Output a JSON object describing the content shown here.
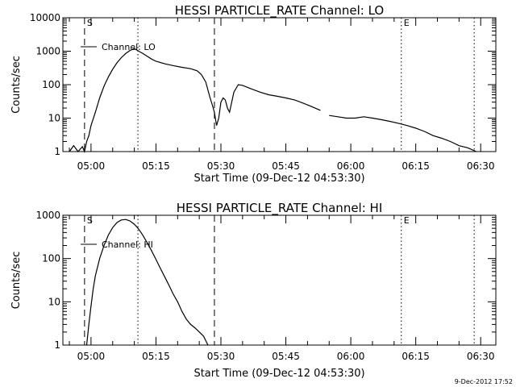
{
  "chart_data": [
    {
      "type": "line",
      "title": "HESSI PARTICLE_RATE Channel: LO",
      "xlabel": "Start Time (09-Dec-12 04:53:30)",
      "ylabel": "Counts/sec",
      "yscale": "log",
      "ylim": [
        1,
        10000
      ],
      "xlim_minutes": [
        0,
        100
      ],
      "x_ticks": [
        "05:00",
        "05:15",
        "05:30",
        "05:45",
        "06:00",
        "06:15",
        "06:30"
      ],
      "y_ticks": [
        "1",
        "10",
        "100",
        "1000",
        "10000"
      ],
      "legend": {
        "label": "Channel: LO",
        "position": "top-left"
      },
      "markers": [
        {
          "label": "S",
          "time": "04:58:30",
          "style": "dashed"
        },
        {
          "label": "",
          "time": "05:28:30",
          "style": "dashed"
        },
        {
          "label": "",
          "time": "05:10:50",
          "style": "dotted"
        },
        {
          "label": "E",
          "time": "06:11:40",
          "style": "dotted"
        },
        {
          "label": "",
          "time": "06:28:30",
          "style": "dotted"
        }
      ],
      "series": [
        {
          "segments": [
            {
              "time": [
                "04:55:00",
                "04:56:00",
                "04:57:00",
                "04:58:00",
                "04:58:30",
                "04:59:00",
                "04:59:30",
                "05:00:00",
                "05:01:00",
                "05:02:00",
                "05:03:00",
                "05:04:00",
                "05:05:00",
                "05:06:00",
                "05:07:00",
                "05:08:00",
                "05:09:00",
                "05:10:00",
                "05:11:00",
                "05:12:00",
                "05:13:00",
                "05:14:00",
                "05:15:00",
                "05:17:00",
                "05:19:00",
                "05:21:00",
                "05:23:00",
                "05:24:30",
                "05:25:30",
                "05:26:30",
                "05:27:30",
                "05:28:00",
                "05:28:30",
                "05:29:00",
                "05:29:30",
                "05:30:00",
                "05:30:30",
                "05:31:00",
                "05:31:30",
                "05:32:00",
                "05:33:00",
                "05:34:00",
                "05:35:00",
                "05:37:00",
                "05:39:00",
                "05:41:00",
                "05:43:00",
                "05:45:00",
                "05:47:00",
                "05:49:00",
                "05:51:00",
                "05:53:00"
              ],
              "values": [
                1,
                1.5,
                1,
                1.4,
                1,
                2,
                3,
                6,
                15,
                40,
                90,
                170,
                290,
                450,
                640,
                850,
                1050,
                1200,
                1000,
                850,
                700,
                580,
                500,
                420,
                370,
                330,
                300,
                260,
                200,
                120,
                40,
                25,
                15,
                6,
                10,
                30,
                40,
                35,
                20,
                15,
                60,
                100,
                95,
                75,
                60,
                50,
                45,
                40,
                35,
                28,
                22,
                17
              ]
            },
            {
              "time": [
                "05:55:00",
                "05:57:00",
                "05:59:00",
                "06:01:00",
                "06:03:00",
                "06:05:00",
                "06:07:00",
                "06:09:00",
                "06:11:00",
                "06:13:00",
                "06:15:00",
                "06:17:00",
                "06:19:00",
                "06:21:00",
                "06:23:00",
                "06:25:00",
                "06:27:00",
                "06:29:00"
              ],
              "values": [
                12,
                11,
                10,
                10,
                11,
                10,
                9,
                8,
                7,
                6,
                5,
                4,
                3,
                2.5,
                2,
                1.5,
                1.3,
                1
              ]
            }
          ]
        }
      ]
    },
    {
      "type": "line",
      "title": "HESSI PARTICLE_RATE Channel: HI",
      "xlabel": "Start Time (09-Dec-12 04:53:30)",
      "ylabel": "Counts/sec",
      "yscale": "log",
      "ylim": [
        1,
        1000
      ],
      "xlim_minutes": [
        0,
        100
      ],
      "x_ticks": [
        "05:00",
        "05:15",
        "05:30",
        "05:45",
        "06:00",
        "06:15",
        "06:30"
      ],
      "y_ticks": [
        "1",
        "10",
        "100",
        "1000"
      ],
      "legend": {
        "label": "Channel: HI",
        "position": "top-left"
      },
      "markers": [
        {
          "label": "S",
          "time": "04:58:30",
          "style": "dashed"
        },
        {
          "label": "",
          "time": "05:28:30",
          "style": "dashed"
        },
        {
          "label": "",
          "time": "05:10:50",
          "style": "dotted"
        },
        {
          "label": "E",
          "time": "06:11:40",
          "style": "dotted"
        },
        {
          "label": "",
          "time": "06:28:30",
          "style": "dotted"
        }
      ],
      "series": [
        {
          "segments": [
            {
              "time": [
                "04:59:00",
                "04:59:30",
                "05:00:00",
                "05:00:30",
                "05:01:00",
                "05:02:00",
                "05:03:00",
                "05:04:00",
                "05:05:00",
                "05:06:00",
                "05:07:00",
                "05:08:00",
                "05:09:00",
                "05:10:00",
                "05:11:00",
                "05:12:00",
                "05:13:00",
                "05:14:00",
                "05:15:00",
                "05:16:00",
                "05:17:00",
                "05:18:00",
                "05:19:00",
                "05:20:00",
                "05:21:00",
                "05:22:00",
                "05:23:00",
                "05:24:00",
                "05:25:00",
                "05:26:00",
                "05:27:00"
              ],
              "values": [
                1,
                3,
                8,
                20,
                40,
                100,
                200,
                350,
                520,
                680,
                780,
                800,
                740,
                620,
                480,
                340,
                230,
                150,
                95,
                60,
                38,
                24,
                15,
                10,
                6,
                4,
                3,
                2.5,
                2,
                1.6,
                1
              ]
            }
          ]
        }
      ]
    }
  ],
  "footer": {
    "timestamp": "9-Dec-2012 17:52"
  }
}
